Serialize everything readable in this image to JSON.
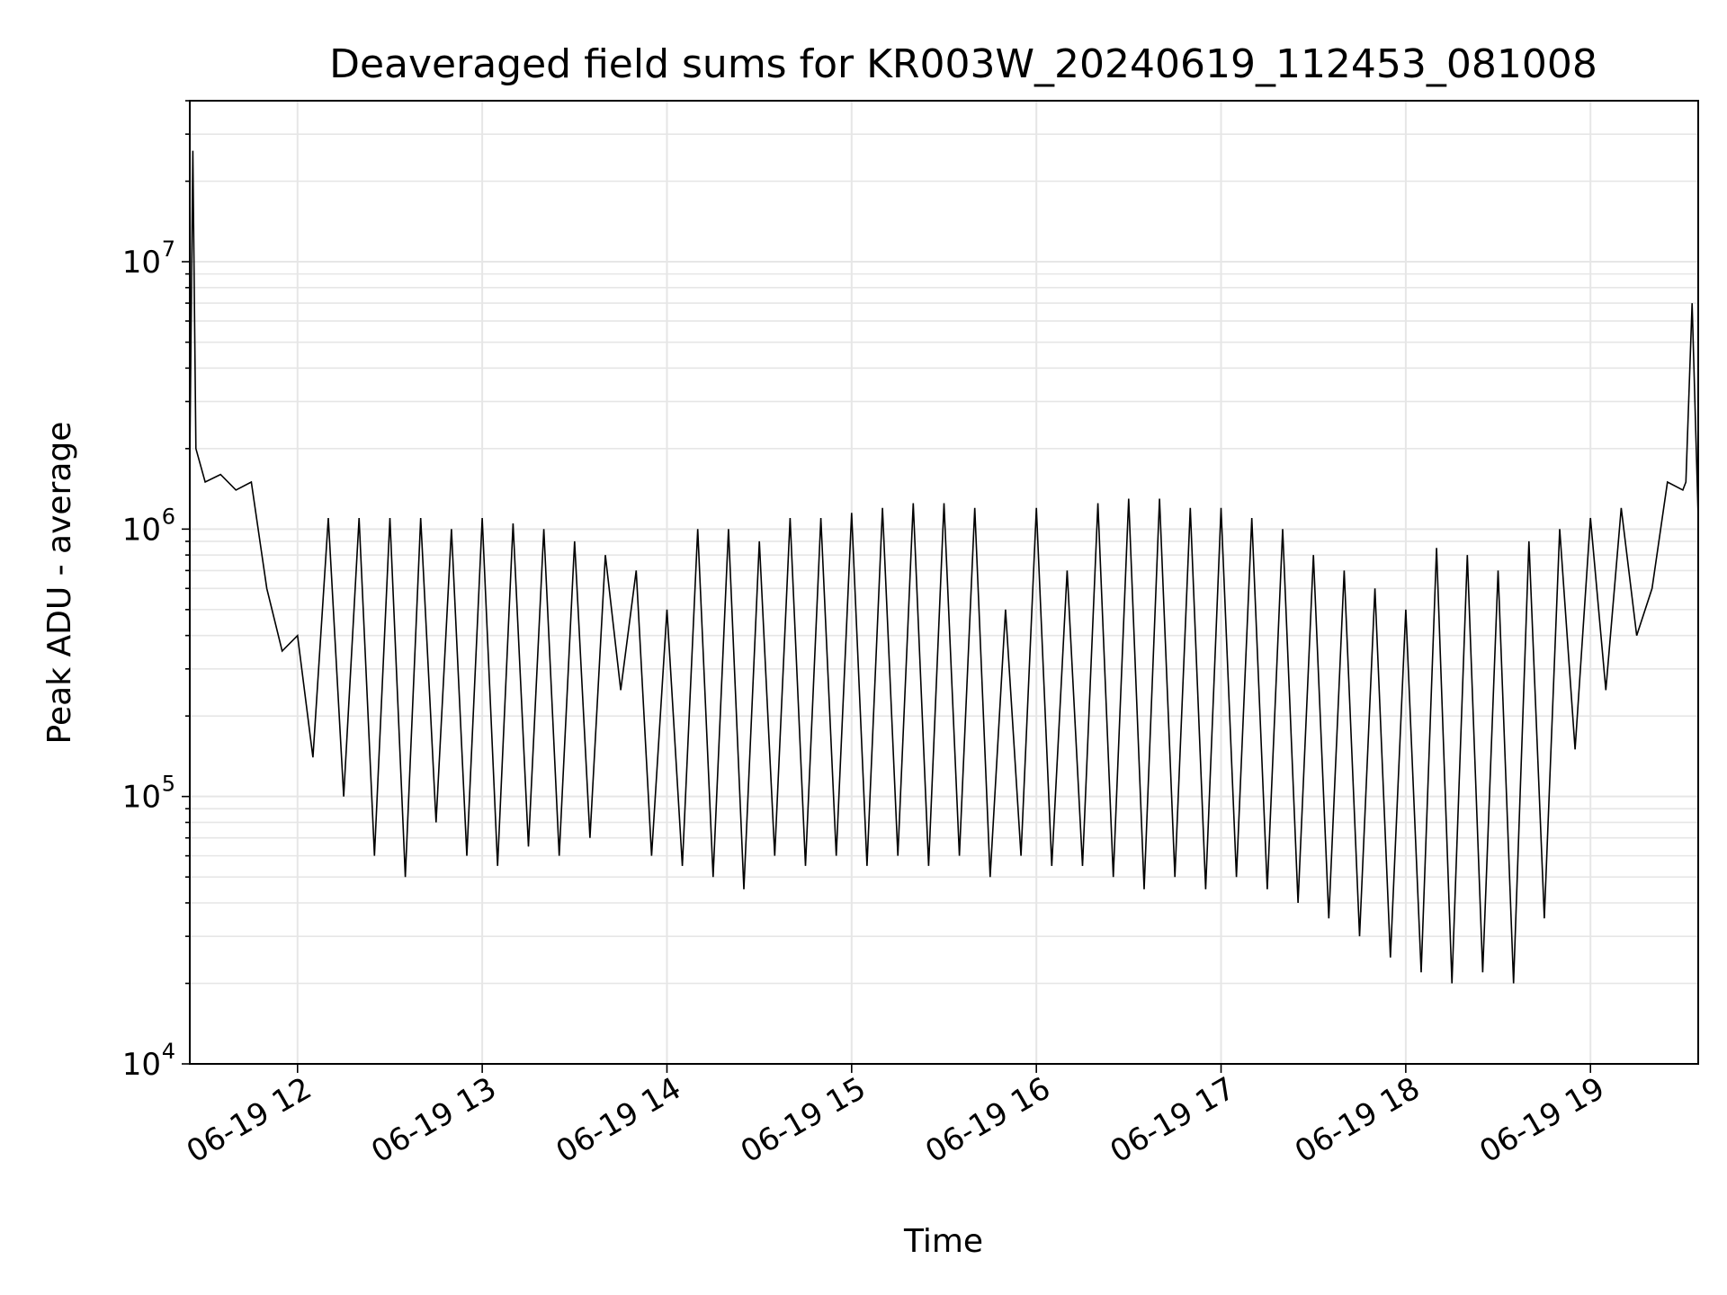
{
  "chart_data": {
    "type": "line",
    "title": "Deaveraged field sums for KR003W_20240619_112453_081008",
    "xlabel": "Time",
    "ylabel": "Peak ADU - average",
    "yscale": "log",
    "ylim": [
      10000,
      40000000
    ],
    "xlim": [
      "2024-06-19 11:25",
      "2024-06-19 19:35"
    ],
    "grid": true,
    "line_color": "#000000",
    "grid_color": "#e6e6e6",
    "x_ticks": [
      "06-19 12",
      "06-19 13",
      "06-19 14",
      "06-19 15",
      "06-19 16",
      "06-19 17",
      "06-19 18",
      "06-19 19"
    ],
    "y_ticks": [
      {
        "base": "10",
        "exp": "4"
      },
      {
        "base": "10",
        "exp": "5"
      },
      {
        "base": "10",
        "exp": "6"
      },
      {
        "base": "10",
        "exp": "7"
      }
    ],
    "series": [
      {
        "description": "trace sampled at the approximate envelope (low/high alternation indicates rapid oscillation)",
        "x": [
          "2024-06-19 11:25",
          "2024-06-19 11:26",
          "2024-06-19 11:27",
          "2024-06-19 11:30",
          "2024-06-19 11:35",
          "2024-06-19 11:40",
          "2024-06-19 11:45",
          "2024-06-19 11:50",
          "2024-06-19 11:55",
          "2024-06-19 12:00",
          "2024-06-19 12:05",
          "2024-06-19 12:10",
          "2024-06-19 12:15",
          "2024-06-19 12:20",
          "2024-06-19 12:25",
          "2024-06-19 12:30",
          "2024-06-19 12:35",
          "2024-06-19 12:40",
          "2024-06-19 12:45",
          "2024-06-19 12:50",
          "2024-06-19 12:55",
          "2024-06-19 13:00",
          "2024-06-19 13:05",
          "2024-06-19 13:10",
          "2024-06-19 13:15",
          "2024-06-19 13:20",
          "2024-06-19 13:25",
          "2024-06-19 13:30",
          "2024-06-19 13:35",
          "2024-06-19 13:40",
          "2024-06-19 13:45",
          "2024-06-19 13:50",
          "2024-06-19 13:55",
          "2024-06-19 14:00",
          "2024-06-19 14:05",
          "2024-06-19 14:10",
          "2024-06-19 14:15",
          "2024-06-19 14:20",
          "2024-06-19 14:25",
          "2024-06-19 14:30",
          "2024-06-19 14:35",
          "2024-06-19 14:40",
          "2024-06-19 14:45",
          "2024-06-19 14:50",
          "2024-06-19 14:55",
          "2024-06-19 15:00",
          "2024-06-19 15:05",
          "2024-06-19 15:10",
          "2024-06-19 15:15",
          "2024-06-19 15:20",
          "2024-06-19 15:25",
          "2024-06-19 15:30",
          "2024-06-19 15:35",
          "2024-06-19 15:40",
          "2024-06-19 15:45",
          "2024-06-19 15:50",
          "2024-06-19 15:55",
          "2024-06-19 16:00",
          "2024-06-19 16:05",
          "2024-06-19 16:10",
          "2024-06-19 16:15",
          "2024-06-19 16:20",
          "2024-06-19 16:25",
          "2024-06-19 16:30",
          "2024-06-19 16:35",
          "2024-06-19 16:40",
          "2024-06-19 16:45",
          "2024-06-19 16:50",
          "2024-06-19 16:55",
          "2024-06-19 17:00",
          "2024-06-19 17:05",
          "2024-06-19 17:10",
          "2024-06-19 17:15",
          "2024-06-19 17:20",
          "2024-06-19 17:25",
          "2024-06-19 17:30",
          "2024-06-19 17:35",
          "2024-06-19 17:40",
          "2024-06-19 17:45",
          "2024-06-19 17:50",
          "2024-06-19 17:55",
          "2024-06-19 18:00",
          "2024-06-19 18:05",
          "2024-06-19 18:10",
          "2024-06-19 18:15",
          "2024-06-19 18:20",
          "2024-06-19 18:25",
          "2024-06-19 18:30",
          "2024-06-19 18:35",
          "2024-06-19 18:40",
          "2024-06-19 18:45",
          "2024-06-19 18:50",
          "2024-06-19 18:55",
          "2024-06-19 19:00",
          "2024-06-19 19:05",
          "2024-06-19 19:10",
          "2024-06-19 19:15",
          "2024-06-19 19:20",
          "2024-06-19 19:25",
          "2024-06-19 19:30",
          "2024-06-19 19:31",
          "2024-06-19 19:33",
          "2024-06-19 19:35"
        ],
        "y": [
          1800000,
          26000000,
          2000000,
          1500000,
          1600000,
          1400000,
          1500000,
          600000,
          350000,
          400000,
          140000,
          1100000,
          100000,
          1100000,
          60000,
          1100000,
          50000,
          1100000,
          80000,
          1000000,
          60000,
          1100000,
          55000,
          1050000,
          65000,
          1000000,
          60000,
          900000,
          70000,
          800000,
          250000,
          700000,
          60000,
          500000,
          55000,
          1000000,
          50000,
          1000000,
          45000,
          900000,
          60000,
          1100000,
          55000,
          1100000,
          60000,
          1150000,
          55000,
          1200000,
          60000,
          1250000,
          55000,
          1250000,
          60000,
          1200000,
          50000,
          500000,
          60000,
          1200000,
          55000,
          700000,
          55000,
          1250000,
          50000,
          1300000,
          45000,
          1300000,
          50000,
          1200000,
          45000,
          1200000,
          50000,
          1100000,
          45000,
          1000000,
          40000,
          800000,
          35000,
          700000,
          30000,
          600000,
          25000,
          500000,
          22000,
          850000,
          20000,
          800000,
          22000,
          700000,
          20000,
          900000,
          35000,
          1000000,
          150000,
          1100000,
          250000,
          1200000,
          400000,
          600000,
          1500000,
          1400000,
          1500000,
          7000000,
          1100000
        ]
      }
    ]
  }
}
